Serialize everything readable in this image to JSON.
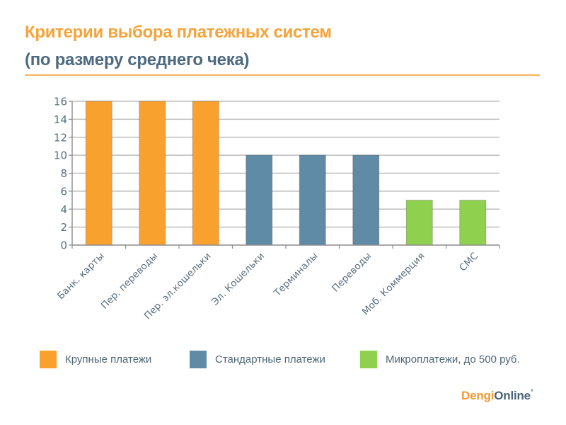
{
  "header": {
    "title": "Критерии выбора платежных систем",
    "subtitle": "(по размеру среднего чека)"
  },
  "colors": {
    "large": "#f9a12e",
    "standard": "#5f8ba6",
    "micro": "#8fd04f",
    "axis_text": "#5a6f7c",
    "grid": "#bdbdbd"
  },
  "chart_data": {
    "type": "bar",
    "title": "Критерии выбора платежных систем (по размеру среднего чека)",
    "xlabel": "",
    "ylabel": "",
    "ylim": [
      0,
      16
    ],
    "yticks": [
      "0",
      "2",
      "4",
      "6",
      "8",
      "10",
      "12",
      "14",
      "16"
    ],
    "grid": true,
    "legend_position": "bottom",
    "categories": [
      "Банк. карты",
      "Пер. переводы",
      "Пер. эл.кошельки",
      "Эл. Кошельки",
      "Терминалы",
      "Переводы",
      "Моб. Коммерция",
      "СМС"
    ],
    "values": [
      16,
      16,
      16,
      10,
      10,
      10,
      5,
      5
    ],
    "groups": [
      "large",
      "large",
      "large",
      "standard",
      "standard",
      "standard",
      "micro",
      "micro"
    ]
  },
  "legend": [
    {
      "key": "large",
      "label": "Крупные платежи"
    },
    {
      "key": "standard",
      "label": "Стандартные  платежи"
    },
    {
      "key": "micro",
      "label": "Микроплатежи,  до 500 руб."
    }
  ],
  "logo": {
    "part1": "Dengi",
    "part2": "Online",
    "mark": "®"
  }
}
